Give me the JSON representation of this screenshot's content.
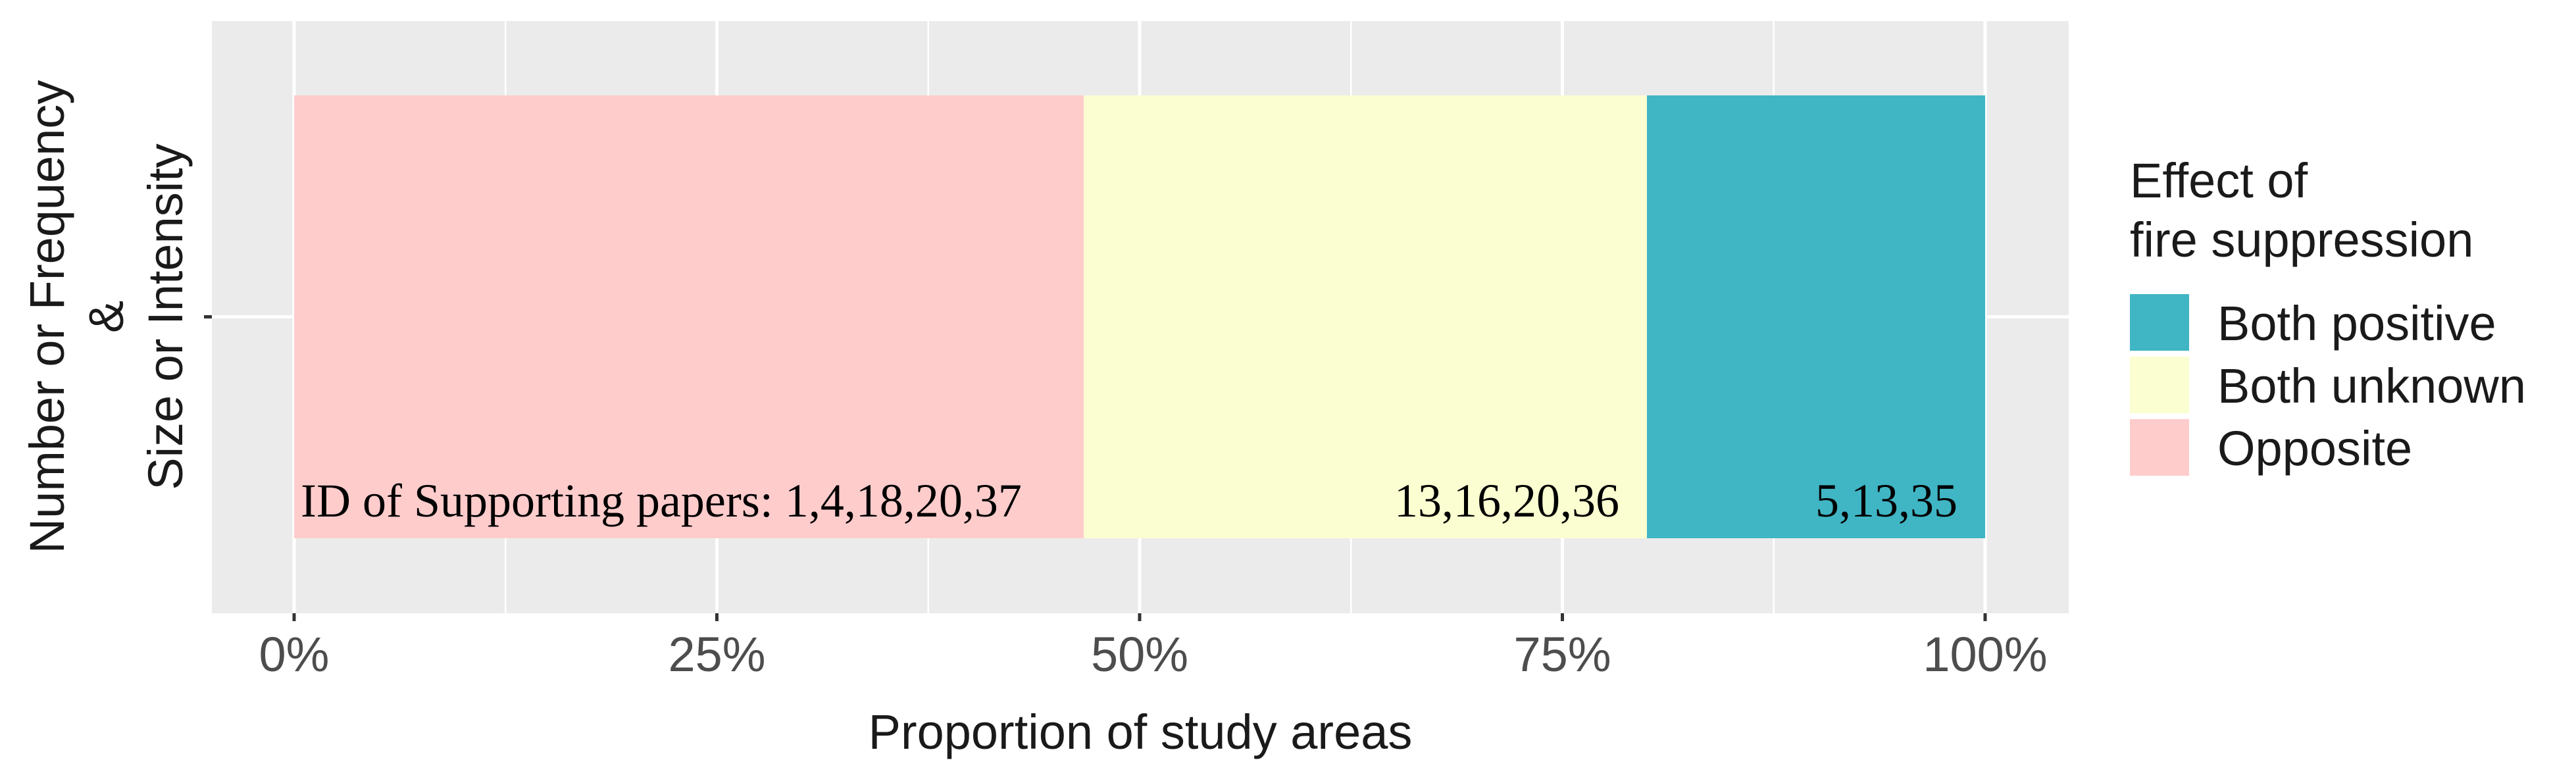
{
  "chart_data": {
    "type": "bar",
    "orientation": "horizontal",
    "stacked": true,
    "categories": [
      "Number or Frequency\n&\nSize or Intensity"
    ],
    "series": [
      {
        "name": "Opposite",
        "values": [
          0.467
        ],
        "color": "#ffcccc",
        "label": "ID of Supporting papers: 1,4,18,20,37"
      },
      {
        "name": "Both unknown",
        "values": [
          0.333
        ],
        "color": "#fbfed1",
        "label": "13,16,20,36"
      },
      {
        "name": "Both positive",
        "values": [
          0.2
        ],
        "color": "#40b5c4",
        "label": "5,13,35"
      }
    ],
    "xlabel": "Proportion of study areas",
    "ylabel": "",
    "xlim": [
      0,
      1
    ],
    "xticks": [
      {
        "value": 0,
        "label": "0%"
      },
      {
        "value": 0.25,
        "label": "25%"
      },
      {
        "value": 0.5,
        "label": "50%"
      },
      {
        "value": 0.75,
        "label": "75%"
      },
      {
        "value": 1,
        "label": "100%"
      }
    ],
    "y_tick_lines": [
      "Number or Frequency",
      "&",
      "Size or Intensity"
    ],
    "legend": {
      "title_lines": [
        "Effect of",
        "fire suppression"
      ],
      "entries": [
        "Both positive",
        "Both unknown",
        "Opposite"
      ],
      "placement": "right"
    },
    "grid": true,
    "panel_color": "#ebebeb"
  }
}
